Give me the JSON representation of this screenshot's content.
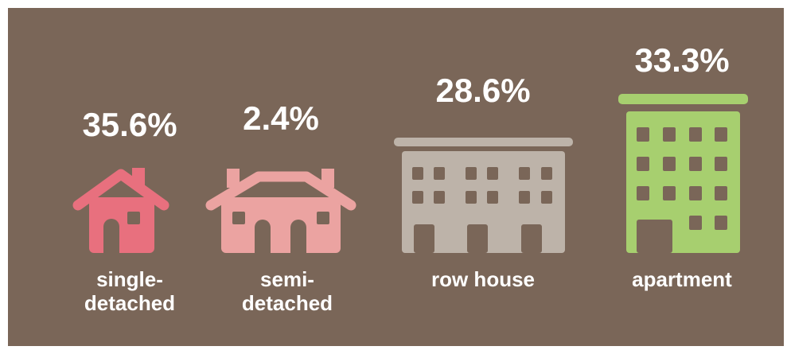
{
  "chart_data": {
    "type": "pictograph",
    "categories": [
      "single-detached",
      "semi-detached",
      "row house",
      "apartment"
    ],
    "values": [
      35.6,
      2.4,
      28.6,
      33.3
    ],
    "value_labels": [
      "35.6%",
      "2.4%",
      "28.6%",
      "33.3%"
    ],
    "colors": [
      "#e8707e",
      "#eba3a1",
      "#bdb3a9",
      "#a7cf6f"
    ]
  }
}
